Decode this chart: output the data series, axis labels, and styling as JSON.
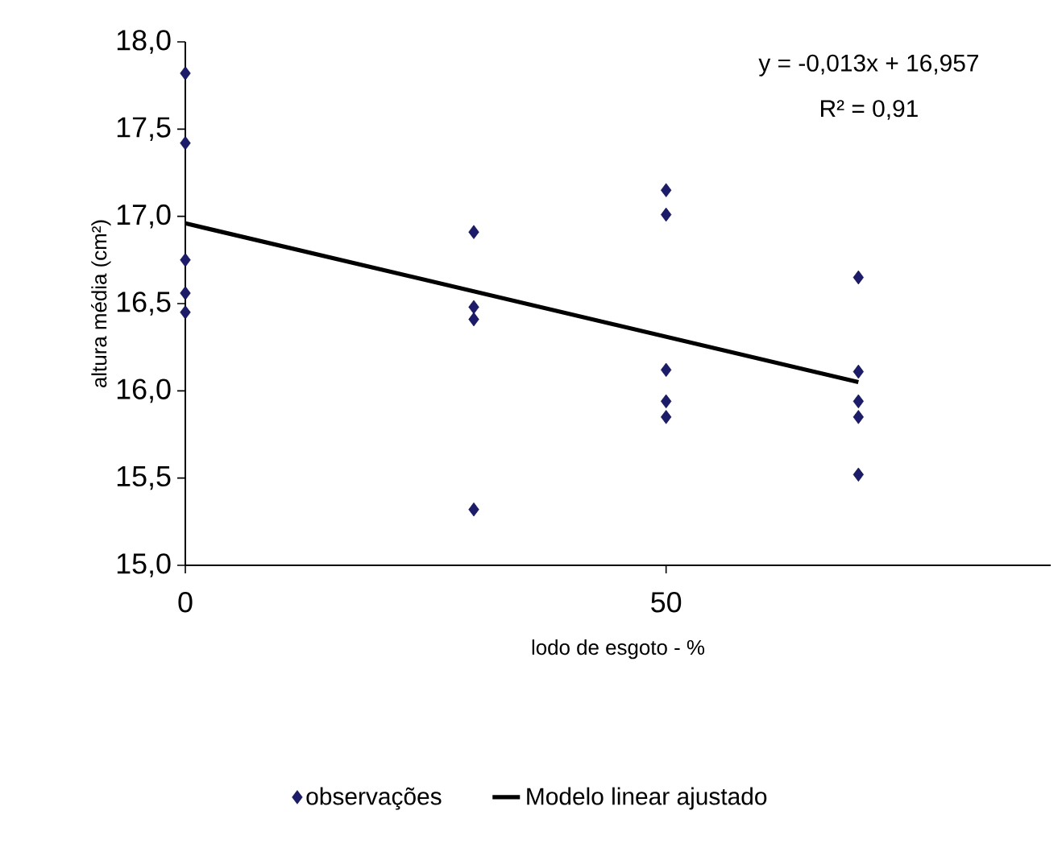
{
  "chart_data": {
    "type": "scatter",
    "xlabel": "lodo de esgoto - %",
    "ylabel": "altura média (cm²)",
    "annotations": [
      "y = -0,013x  + 16,957",
      "R² = 0,91"
    ],
    "xlim": [
      0,
      90
    ],
    "xticks": [
      0,
      50
    ],
    "ylim": [
      15,
      18
    ],
    "yticks": [
      {
        "value": 15,
        "label": "15,0"
      },
      {
        "value": 15.5,
        "label": "15,5"
      },
      {
        "value": 16,
        "label": "16,0"
      },
      {
        "value": 16.5,
        "label": "16,5"
      },
      {
        "value": 17,
        "label": "17,0"
      },
      {
        "value": 17.5,
        "label": "17,5"
      },
      {
        "value": 18,
        "label": "18,0"
      }
    ],
    "grid": false,
    "legend": "bottom",
    "series": [
      {
        "name": "observações",
        "marker": "diamond",
        "color": "#1c1c6b",
        "x": [
          0,
          0,
          0,
          0,
          0,
          30,
          30,
          30,
          30,
          50,
          50,
          50,
          50,
          50,
          70,
          70,
          70,
          70,
          70
        ],
        "values": [
          17.82,
          17.42,
          16.75,
          16.56,
          16.45,
          16.91,
          16.48,
          16.41,
          15.32,
          17.15,
          17.01,
          16.12,
          15.94,
          15.85,
          16.65,
          16.11,
          15.94,
          15.85,
          15.52
        ]
      },
      {
        "name": "Modelo linear ajustado",
        "type": "line",
        "marker": "none",
        "line_style": "solid",
        "color": "#000000",
        "x": [
          0,
          70
        ],
        "values": [
          16.96,
          16.05
        ]
      }
    ]
  }
}
